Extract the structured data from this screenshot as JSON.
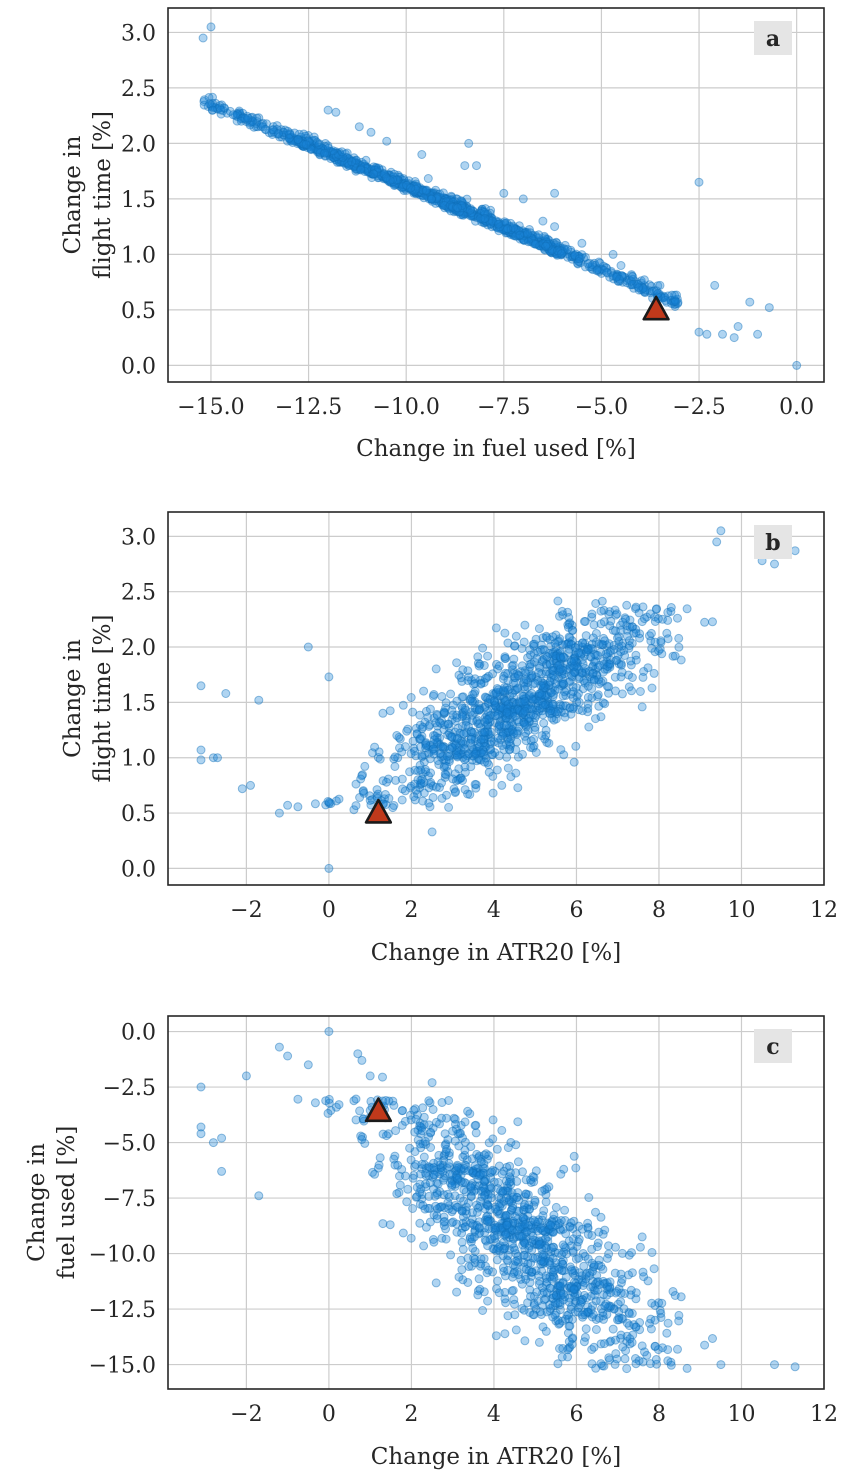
{
  "colors": {
    "points": "#1a84d6",
    "points_edge": "#0f6fb8",
    "marker_fill": "#c0391b",
    "marker_edge": "#1a1a1a",
    "grid": "#cccccc",
    "frame": "#262626",
    "panel_badge": "#e5e5e5"
  },
  "chart_data": [
    {
      "type": "scatter",
      "panel_label": "a",
      "xlabel": "Change in fuel used [%]",
      "ylabel": [
        "Change in",
        "flight time [%]"
      ],
      "xlim": [
        -16.1,
        0.7
      ],
      "ylim": [
        -0.15,
        3.22
      ],
      "xticks": [
        -15.0,
        -12.5,
        -10.0,
        -7.5,
        -5.0,
        -2.5,
        0.0
      ],
      "xtick_labels": [
        "−15.0",
        "−12.5",
        "−10.0",
        "−7.5",
        "−5.0",
        "−2.5",
        "0.0"
      ],
      "yticks": [
        0.0,
        0.5,
        1.0,
        1.5,
        2.0,
        2.5,
        3.0
      ],
      "ytick_labels": [
        "0.0",
        "0.5",
        "1.0",
        "1.5",
        "2.0",
        "2.5",
        "3.0"
      ],
      "grid": true,
      "highlight": {
        "x": -3.6,
        "y": 0.5,
        "marker": "triangle"
      },
      "outliers": [
        [
          -15.0,
          3.05
        ],
        [
          -15.2,
          2.95
        ],
        [
          -12.0,
          2.3
        ],
        [
          -11.8,
          2.28
        ],
        [
          -11.2,
          2.15
        ],
        [
          -10.9,
          2.1
        ],
        [
          -10.5,
          2.02
        ],
        [
          -9.6,
          1.9
        ],
        [
          -8.5,
          1.8
        ],
        [
          -8.2,
          1.8
        ],
        [
          -8.4,
          2.0
        ],
        [
          -7.5,
          1.55
        ],
        [
          -7.0,
          1.5
        ],
        [
          -6.5,
          1.3
        ],
        [
          -6.2,
          1.25
        ],
        [
          -6.2,
          1.55
        ],
        [
          -5.5,
          1.1
        ],
        [
          -4.7,
          1.0
        ],
        [
          -4.5,
          0.9
        ],
        [
          -4.2,
          0.8
        ],
        [
          -3.5,
          0.72
        ],
        [
          -2.5,
          1.65
        ],
        [
          -2.1,
          0.72
        ],
        [
          -1.9,
          0.28
        ],
        [
          -1.6,
          0.25
        ],
        [
          -1.5,
          0.35
        ],
        [
          -1.2,
          0.57
        ],
        [
          -1.0,
          0.28
        ],
        [
          -0.7,
          0.52
        ],
        [
          0.0,
          0.0
        ],
        [
          -2.5,
          0.3
        ],
        [
          -2.3,
          0.28
        ]
      ]
    },
    {
      "type": "scatter",
      "panel_label": "b",
      "xlabel": "Change in ATR20 [%]",
      "ylabel": [
        "Change in",
        "flight time [%]"
      ],
      "xlim": [
        -3.9,
        12.0
      ],
      "ylim": [
        -0.15,
        3.22
      ],
      "xticks": [
        -2,
        0,
        2,
        4,
        6,
        8,
        10,
        12
      ],
      "xtick_labels": [
        "−2",
        "0",
        "2",
        "4",
        "6",
        "8",
        "10",
        "12"
      ],
      "yticks": [
        0.0,
        0.5,
        1.0,
        1.5,
        2.0,
        2.5,
        3.0
      ],
      "ytick_labels": [
        "0.0",
        "0.5",
        "1.0",
        "1.5",
        "2.0",
        "2.5",
        "3.0"
      ],
      "grid": true,
      "highlight": {
        "x": 1.2,
        "y": 0.5,
        "marker": "triangle"
      },
      "outliers": [
        [
          -3.1,
          1.65
        ],
        [
          -3.1,
          1.07
        ],
        [
          -3.1,
          0.98
        ],
        [
          -2.8,
          1.0
        ],
        [
          -2.7,
          1.0
        ],
        [
          -2.5,
          1.58
        ],
        [
          -2.1,
          0.72
        ],
        [
          -1.7,
          1.52
        ],
        [
          -1.9,
          0.75
        ],
        [
          -1.2,
          0.5
        ],
        [
          -1.0,
          0.57
        ],
        [
          -0.5,
          2.0
        ],
        [
          0.0,
          0.0
        ],
        [
          0.0,
          1.73
        ],
        [
          2.5,
          0.33
        ],
        [
          9.5,
          3.05
        ],
        [
          9.4,
          2.95
        ],
        [
          11.3,
          2.87
        ],
        [
          10.8,
          2.75
        ],
        [
          10.5,
          2.78
        ]
      ]
    },
    {
      "type": "scatter",
      "panel_label": "c",
      "xlabel": "Change in ATR20 [%]",
      "ylabel": [
        "Change in",
        "fuel used [%]"
      ],
      "xlim": [
        -3.9,
        12.0
      ],
      "ylim": [
        -16.1,
        0.7
      ],
      "xticks": [
        -2,
        0,
        2,
        4,
        6,
        8,
        10,
        12
      ],
      "xtick_labels": [
        "−2",
        "0",
        "2",
        "4",
        "6",
        "8",
        "10",
        "12"
      ],
      "yticks": [
        0.0,
        -2.5,
        -5.0,
        -7.5,
        -10.0,
        -12.5,
        -15.0
      ],
      "ytick_labels": [
        "0.0",
        "−2.5",
        "−5.0",
        "−7.5",
        "−10.0",
        "−12.5",
        "−15.0"
      ],
      "grid": true,
      "highlight": {
        "x": 1.2,
        "y": -3.6,
        "marker": "triangle"
      },
      "outliers": [
        [
          0.0,
          0.0
        ],
        [
          -1.2,
          -0.7
        ],
        [
          -1.0,
          -1.1
        ],
        [
          0.7,
          -1.0
        ],
        [
          0.8,
          -1.3
        ],
        [
          -0.5,
          -1.5
        ],
        [
          -2.0,
          -2.0
        ],
        [
          -3.1,
          -2.5
        ],
        [
          -3.1,
          -4.3
        ],
        [
          -3.1,
          -4.6
        ],
        [
          -2.8,
          -5.0
        ],
        [
          -2.6,
          -4.8
        ],
        [
          -2.6,
          -6.3
        ],
        [
          -1.7,
          -7.4
        ],
        [
          2.5,
          -2.3
        ],
        [
          1.0,
          -2.0
        ],
        [
          1.3,
          -2.05
        ],
        [
          9.5,
          -15.0
        ],
        [
          11.3,
          -15.1
        ],
        [
          10.8,
          -15.0
        ]
      ]
    }
  ]
}
